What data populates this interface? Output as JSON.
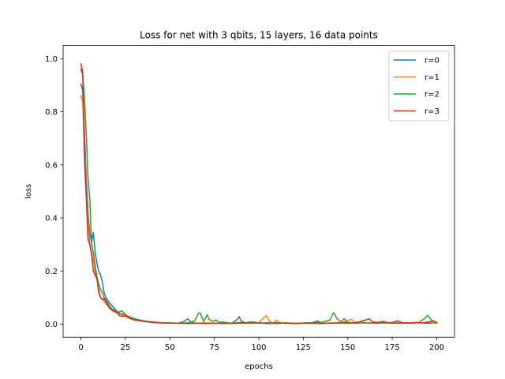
{
  "chart_data": {
    "type": "line",
    "title": "Loss for net with 3 qbits, 15 layers, 16 data points",
    "xlabel": "epochs",
    "ylabel": "loss",
    "xlim": [
      -10,
      210
    ],
    "ylim": [
      -0.05,
      1.05
    ],
    "xticks": [
      0,
      25,
      50,
      75,
      100,
      125,
      150,
      175,
      200
    ],
    "yticks": [
      0.0,
      0.2,
      0.4,
      0.6,
      0.8,
      1.0
    ],
    "xtick_labels": [
      "0",
      "25",
      "50",
      "75",
      "100",
      "125",
      "150",
      "175",
      "200"
    ],
    "ytick_labels": [
      "0.0",
      "0.2",
      "0.4",
      "0.6",
      "0.8",
      "1.0"
    ],
    "grid": false,
    "legend_position": "top-right",
    "series": [
      {
        "name": "r=0",
        "color": "#1f77b4",
        "points": [
          [
            0,
            0.905
          ],
          [
            1,
            0.88
          ],
          [
            2,
            0.72
          ],
          [
            3,
            0.55
          ],
          [
            4,
            0.42
          ],
          [
            5,
            0.34
          ],
          [
            6,
            0.31
          ],
          [
            7,
            0.345
          ],
          [
            8,
            0.27
          ],
          [
            9,
            0.23
          ],
          [
            10,
            0.2
          ],
          [
            11,
            0.185
          ],
          [
            12,
            0.16
          ],
          [
            13,
            0.12
          ],
          [
            14,
            0.1
          ],
          [
            15,
            0.09
          ],
          [
            16,
            0.08
          ],
          [
            18,
            0.065
          ],
          [
            20,
            0.05
          ],
          [
            22,
            0.04
          ],
          [
            25,
            0.033
          ],
          [
            28,
            0.025
          ],
          [
            30,
            0.02
          ],
          [
            35,
            0.012
          ],
          [
            40,
            0.008
          ],
          [
            45,
            0.005
          ],
          [
            50,
            0.004
          ],
          [
            55,
            0.003
          ],
          [
            58,
            0.01
          ],
          [
            60,
            0.02
          ],
          [
            62,
            0.006
          ],
          [
            65,
            0.003
          ],
          [
            70,
            0.004
          ],
          [
            75,
            0.003
          ],
          [
            80,
            0.005
          ],
          [
            85,
            0.003
          ],
          [
            88,
            0.018
          ],
          [
            89,
            0.028
          ],
          [
            90,
            0.012
          ],
          [
            93,
            0.003
          ],
          [
            97,
            0.008
          ],
          [
            100,
            0.003
          ],
          [
            105,
            0.005
          ],
          [
            110,
            0.002
          ],
          [
            115,
            0.004
          ],
          [
            120,
            0.003
          ],
          [
            125,
            0.004
          ],
          [
            130,
            0.005
          ],
          [
            133,
            0.012
          ],
          [
            135,
            0.004
          ],
          [
            140,
            0.003
          ],
          [
            145,
            0.004
          ],
          [
            150,
            0.006
          ],
          [
            155,
            0.003
          ],
          [
            160,
            0.005
          ],
          [
            165,
            0.003
          ],
          [
            170,
            0.004
          ],
          [
            175,
            0.006
          ],
          [
            178,
            0.012
          ],
          [
            181,
            0.004
          ],
          [
            185,
            0.003
          ],
          [
            190,
            0.005
          ],
          [
            195,
            0.003
          ],
          [
            200,
            0.004
          ]
        ]
      },
      {
        "name": "r=1",
        "color": "#ff7f0e",
        "points": [
          [
            0,
            0.86
          ],
          [
            1,
            0.84
          ],
          [
            2,
            0.65
          ],
          [
            3,
            0.5
          ],
          [
            4,
            0.39
          ],
          [
            5,
            0.3
          ],
          [
            6,
            0.27
          ],
          [
            7,
            0.24
          ],
          [
            8,
            0.2
          ],
          [
            9,
            0.17
          ],
          [
            10,
            0.13
          ],
          [
            11,
            0.1
          ],
          [
            12,
            0.095
          ],
          [
            13,
            0.085
          ],
          [
            15,
            0.07
          ],
          [
            17,
            0.055
          ],
          [
            19,
            0.045
          ],
          [
            21,
            0.04
          ],
          [
            23,
            0.035
          ],
          [
            25,
            0.03
          ],
          [
            28,
            0.02
          ],
          [
            30,
            0.018
          ],
          [
            35,
            0.012
          ],
          [
            40,
            0.008
          ],
          [
            45,
            0.005
          ],
          [
            50,
            0.004
          ],
          [
            55,
            0.003
          ],
          [
            60,
            0.004
          ],
          [
            65,
            0.003
          ],
          [
            70,
            0.005
          ],
          [
            75,
            0.003
          ],
          [
            80,
            0.004
          ],
          [
            85,
            0.002
          ],
          [
            90,
            0.003
          ],
          [
            95,
            0.004
          ],
          [
            100,
            0.005
          ],
          [
            102,
            0.018
          ],
          [
            104,
            0.032
          ],
          [
            106,
            0.01
          ],
          [
            108,
            0.004
          ],
          [
            110,
            0.015
          ],
          [
            112,
            0.004
          ],
          [
            115,
            0.003
          ],
          [
            120,
            0.004
          ],
          [
            125,
            0.003
          ],
          [
            130,
            0.002
          ],
          [
            135,
            0.003
          ],
          [
            140,
            0.004
          ],
          [
            145,
            0.005
          ],
          [
            150,
            0.012
          ],
          [
            152,
            0.018
          ],
          [
            154,
            0.006
          ],
          [
            158,
            0.003
          ],
          [
            162,
            0.004
          ],
          [
            165,
            0.006
          ],
          [
            170,
            0.003
          ],
          [
            175,
            0.005
          ],
          [
            180,
            0.004
          ],
          [
            185,
            0.003
          ],
          [
            190,
            0.006
          ],
          [
            193,
            0.004
          ],
          [
            195,
            0.008
          ],
          [
            198,
            0.005
          ],
          [
            200,
            0.003
          ]
        ]
      },
      {
        "name": "r=2",
        "color": "#2ca02c",
        "points": [
          [
            0,
            0.96
          ],
          [
            1,
            0.94
          ],
          [
            2,
            0.85
          ],
          [
            3,
            0.72
          ],
          [
            4,
            0.55
          ],
          [
            5,
            0.47
          ],
          [
            6,
            0.3
          ],
          [
            7,
            0.27
          ],
          [
            8,
            0.22
          ],
          [
            9,
            0.18
          ],
          [
            10,
            0.15
          ],
          [
            11,
            0.13
          ],
          [
            12,
            0.12
          ],
          [
            13,
            0.1
          ],
          [
            15,
            0.08
          ],
          [
            17,
            0.06
          ],
          [
            19,
            0.05
          ],
          [
            21,
            0.045
          ],
          [
            23,
            0.05
          ],
          [
            25,
            0.035
          ],
          [
            28,
            0.025
          ],
          [
            30,
            0.02
          ],
          [
            35,
            0.012
          ],
          [
            40,
            0.008
          ],
          [
            45,
            0.005
          ],
          [
            50,
            0.004
          ],
          [
            55,
            0.003
          ],
          [
            60,
            0.004
          ],
          [
            64,
            0.012
          ],
          [
            66,
            0.04
          ],
          [
            67,
            0.042
          ],
          [
            69,
            0.01
          ],
          [
            71,
            0.035
          ],
          [
            72,
            0.018
          ],
          [
            74,
            0.01
          ],
          [
            76,
            0.015
          ],
          [
            78,
            0.006
          ],
          [
            80,
            0.008
          ],
          [
            83,
            0.004
          ],
          [
            85,
            0.003
          ],
          [
            90,
            0.006
          ],
          [
            92,
            0.003
          ],
          [
            95,
            0.008
          ],
          [
            100,
            0.004
          ],
          [
            105,
            0.003
          ],
          [
            110,
            0.005
          ],
          [
            115,
            0.003
          ],
          [
            120,
            0.002
          ],
          [
            125,
            0.003
          ],
          [
            130,
            0.004
          ],
          [
            135,
            0.006
          ],
          [
            140,
            0.015
          ],
          [
            142,
            0.043
          ],
          [
            144,
            0.02
          ],
          [
            146,
            0.008
          ],
          [
            148,
            0.02
          ],
          [
            150,
            0.006
          ],
          [
            153,
            0.004
          ],
          [
            156,
            0.008
          ],
          [
            160,
            0.004
          ],
          [
            165,
            0.003
          ],
          [
            170,
            0.005
          ],
          [
            175,
            0.004
          ],
          [
            180,
            0.003
          ],
          [
            185,
            0.004
          ],
          [
            190,
            0.006
          ],
          [
            193,
            0.02
          ],
          [
            195,
            0.033
          ],
          [
            197,
            0.015
          ],
          [
            200,
            0.004
          ]
        ]
      },
      {
        "name": "r=3",
        "color": "#d62728",
        "points": [
          [
            0,
            0.98
          ],
          [
            1,
            0.95
          ],
          [
            2,
            0.62
          ],
          [
            3,
            0.48
          ],
          [
            4,
            0.32
          ],
          [
            5,
            0.3
          ],
          [
            6,
            0.26
          ],
          [
            7,
            0.2
          ],
          [
            8,
            0.185
          ],
          [
            9,
            0.17
          ],
          [
            10,
            0.12
          ],
          [
            11,
            0.1
          ],
          [
            12,
            0.092
          ],
          [
            13,
            0.095
          ],
          [
            14,
            0.085
          ],
          [
            16,
            0.06
          ],
          [
            18,
            0.05
          ],
          [
            20,
            0.045
          ],
          [
            22,
            0.03
          ],
          [
            25,
            0.03
          ],
          [
            28,
            0.02
          ],
          [
            30,
            0.015
          ],
          [
            35,
            0.01
          ],
          [
            40,
            0.006
          ],
          [
            45,
            0.004
          ],
          [
            50,
            0.003
          ],
          [
            55,
            0.003
          ],
          [
            60,
            0.002
          ],
          [
            65,
            0.003
          ],
          [
            70,
            0.002
          ],
          [
            75,
            0.003
          ],
          [
            80,
            0.002
          ],
          [
            85,
            0.003
          ],
          [
            90,
            0.004
          ],
          [
            95,
            0.003
          ],
          [
            100,
            0.004
          ],
          [
            105,
            0.002
          ],
          [
            110,
            0.003
          ],
          [
            115,
            0.004
          ],
          [
            120,
            0.002
          ],
          [
            125,
            0.003
          ],
          [
            130,
            0.004
          ],
          [
            135,
            0.002
          ],
          [
            140,
            0.003
          ],
          [
            145,
            0.004
          ],
          [
            150,
            0.003
          ],
          [
            155,
            0.005
          ],
          [
            160,
            0.015
          ],
          [
            162,
            0.02
          ],
          [
            164,
            0.008
          ],
          [
            167,
            0.006
          ],
          [
            170,
            0.01
          ],
          [
            173,
            0.004
          ],
          [
            178,
            0.003
          ],
          [
            182,
            0.005
          ],
          [
            185,
            0.004
          ],
          [
            188,
            0.006
          ],
          [
            192,
            0.004
          ],
          [
            196,
            0.008
          ],
          [
            198,
            0.012
          ],
          [
            200,
            0.006
          ]
        ]
      }
    ]
  }
}
